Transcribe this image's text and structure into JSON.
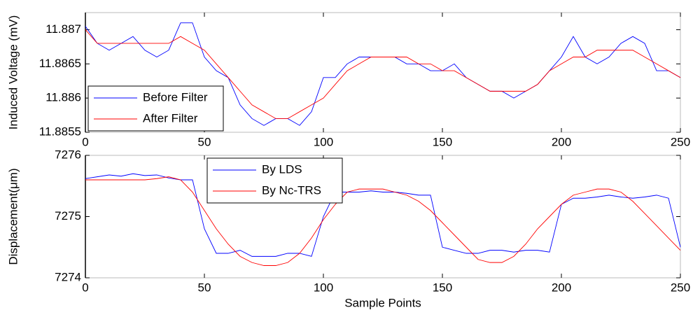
{
  "chart_data": [
    {
      "type": "line",
      "ylabel": "Induced Voltage (mV)",
      "x": [
        0,
        5,
        10,
        15,
        20,
        25,
        30,
        35,
        40,
        45,
        50,
        55,
        60,
        65,
        70,
        75,
        80,
        85,
        90,
        95,
        100,
        105,
        110,
        115,
        120,
        125,
        130,
        135,
        140,
        145,
        150,
        155,
        160,
        165,
        170,
        175,
        180,
        185,
        190,
        195,
        200,
        205,
        210,
        215,
        220,
        225,
        230,
        235,
        240,
        245,
        250
      ],
      "series": [
        {
          "name": "Before Filter",
          "color": "#0000ff",
          "values": [
            11.88705,
            11.8868,
            11.8867,
            11.8868,
            11.8869,
            11.8867,
            11.8866,
            11.8867,
            11.8871,
            11.8871,
            11.8866,
            11.8864,
            11.8863,
            11.8859,
            11.8857,
            11.8856,
            11.8857,
            11.8857,
            11.8856,
            11.8858,
            11.8863,
            11.8863,
            11.8865,
            11.8866,
            11.8866,
            11.8866,
            11.8866,
            11.8865,
            11.8865,
            11.8864,
            11.8864,
            11.8865,
            11.8863,
            11.8862,
            11.8861,
            11.8861,
            11.886,
            11.8861,
            11.8862,
            11.8864,
            11.8866,
            11.8869,
            11.8866,
            11.8865,
            11.8866,
            11.8868,
            11.8869,
            11.8868,
            11.8864,
            11.8864,
            11.8863
          ]
        },
        {
          "name": "After Filter",
          "color": "#ff0000",
          "values": [
            11.887,
            11.8868,
            11.8868,
            11.8868,
            11.8868,
            11.8868,
            11.8868,
            11.8868,
            11.8869,
            11.8868,
            11.8867,
            11.8865,
            11.8863,
            11.8861,
            11.8859,
            11.8858,
            11.8857,
            11.8857,
            11.8858,
            11.8859,
            11.886,
            11.8862,
            11.8864,
            11.8865,
            11.8866,
            11.8866,
            11.8866,
            11.8866,
            11.8865,
            11.8865,
            11.8864,
            11.8864,
            11.8863,
            11.8862,
            11.8861,
            11.8861,
            11.8861,
            11.8861,
            11.8862,
            11.8864,
            11.8865,
            11.8866,
            11.8866,
            11.8867,
            11.8867,
            11.8867,
            11.8867,
            11.8866,
            11.8865,
            11.8864,
            11.8863
          ]
        }
      ],
      "xlim": [
        0,
        250
      ],
      "xticks": [
        0,
        50,
        100,
        150,
        200,
        250
      ],
      "ylim": [
        11.8855,
        11.88725
      ],
      "yticks": [
        11.8855,
        11.886,
        11.8865,
        11.887
      ],
      "legend": "lower left",
      "grid": false
    },
    {
      "type": "line",
      "ylabel": "Displacement(μm)",
      "xlabel": "Sample Points",
      "x": [
        0,
        5,
        10,
        15,
        20,
        25,
        30,
        35,
        40,
        45,
        50,
        55,
        60,
        65,
        70,
        75,
        80,
        85,
        90,
        95,
        100,
        105,
        110,
        115,
        120,
        125,
        130,
        135,
        140,
        145,
        150,
        155,
        160,
        165,
        170,
        175,
        180,
        185,
        190,
        195,
        200,
        205,
        210,
        215,
        220,
        225,
        230,
        235,
        240,
        245,
        250
      ],
      "series": [
        {
          "name": "By LDS",
          "color": "#0000ff",
          "values": [
            7275.62,
            7275.65,
            7275.68,
            7275.66,
            7275.7,
            7275.67,
            7275.68,
            7275.63,
            7275.6,
            7275.6,
            7274.8,
            7274.4,
            7274.4,
            7274.45,
            7274.35,
            7274.35,
            7274.35,
            7274.4,
            7274.4,
            7274.35,
            7275.0,
            7275.4,
            7275.4,
            7275.4,
            7275.42,
            7275.4,
            7275.4,
            7275.38,
            7275.35,
            7275.35,
            7274.5,
            7274.45,
            7274.4,
            7274.4,
            7274.45,
            7274.45,
            7274.42,
            7274.45,
            7274.45,
            7274.42,
            7275.2,
            7275.3,
            7275.3,
            7275.32,
            7275.35,
            7275.32,
            7275.3,
            7275.32,
            7275.35,
            7275.3,
            7274.5
          ]
        },
        {
          "name": "By Nc-TRS",
          "color": "#ff0000",
          "values": [
            7275.6,
            7275.6,
            7275.6,
            7275.6,
            7275.6,
            7275.6,
            7275.62,
            7275.65,
            7275.6,
            7275.4,
            7275.1,
            7274.8,
            7274.55,
            7274.35,
            7274.25,
            7274.2,
            7274.2,
            7274.25,
            7274.4,
            7274.65,
            7274.95,
            7275.2,
            7275.4,
            7275.45,
            7275.45,
            7275.45,
            7275.4,
            7275.35,
            7275.25,
            7275.1,
            7274.9,
            7274.7,
            7274.5,
            7274.3,
            7274.25,
            7274.25,
            7274.35,
            7274.55,
            7274.8,
            7275.0,
            7275.2,
            7275.35,
            7275.4,
            7275.45,
            7275.45,
            7275.4,
            7275.25,
            7275.05,
            7274.85,
            7274.65,
            7274.45
          ]
        }
      ],
      "xlim": [
        0,
        250
      ],
      "xticks": [
        0,
        50,
        100,
        150,
        200,
        250
      ],
      "ylim": [
        7274,
        7276
      ],
      "yticks": [
        7274,
        7275,
        7276
      ],
      "legend": "upper left",
      "grid": false
    }
  ]
}
